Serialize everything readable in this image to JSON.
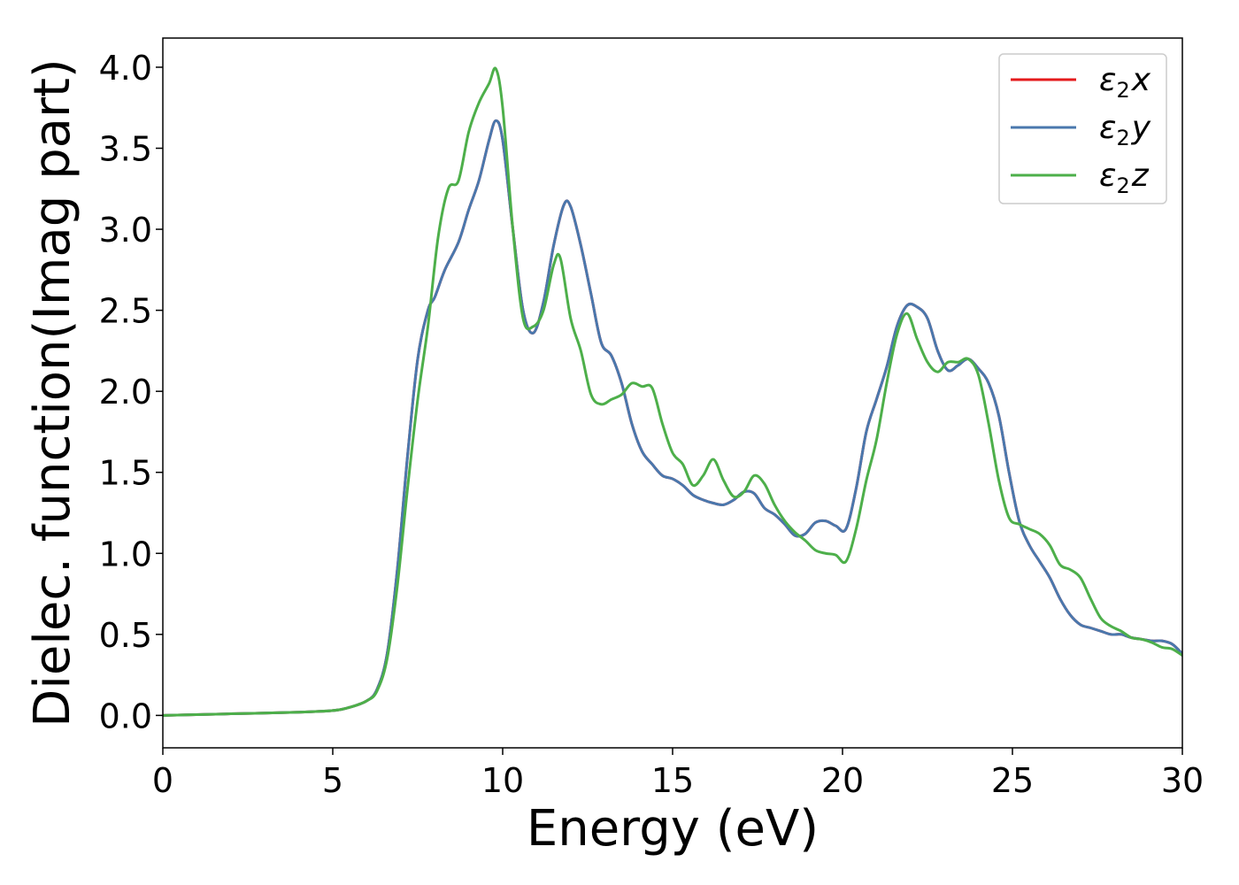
{
  "chart_data": {
    "type": "line",
    "title": "",
    "xlabel": "Energy (eV)",
    "ylabel": "Dielec. function(Imag part)",
    "xlim": [
      0,
      30
    ],
    "ylim": [
      -0.2,
      4.18
    ],
    "xticks": [
      0,
      5,
      10,
      15,
      20,
      25,
      30
    ],
    "xtick_labels": [
      "0",
      "5",
      "10",
      "15",
      "20",
      "25",
      "30"
    ],
    "yticks": [
      0.0,
      0.5,
      1.0,
      1.5,
      2.0,
      2.5,
      3.0,
      3.5,
      4.0
    ],
    "ytick_labels": [
      "0.0",
      "0.5",
      "1.0",
      "1.5",
      "2.0",
      "2.5",
      "3.0",
      "3.5",
      "4.0"
    ],
    "grid": false,
    "legend_position": "top-right",
    "series": [
      {
        "name": "ε2x",
        "legend_base": "ε",
        "legend_sub": "2",
        "legend_var": "x",
        "color": "#e41a1c",
        "x": [
          0,
          2,
          4,
          5,
          5.5,
          6,
          6.3,
          6.6,
          6.9,
          7.2,
          7.5,
          7.8,
          8.0,
          8.3,
          8.7,
          9.0,
          9.3,
          9.6,
          9.8,
          10.0,
          10.3,
          10.6,
          10.9,
          11.2,
          11.5,
          11.8,
          12.0,
          12.3,
          12.6,
          12.9,
          13.2,
          13.5,
          13.8,
          14.1,
          14.4,
          14.7,
          15.0,
          15.3,
          15.6,
          15.9,
          16.2,
          16.5,
          16.8,
          17.1,
          17.4,
          17.7,
          18.0,
          18.3,
          18.6,
          18.9,
          19.2,
          19.5,
          19.8,
          20.1,
          20.4,
          20.7,
          21.0,
          21.3,
          21.6,
          21.9,
          22.2,
          22.5,
          22.8,
          23.1,
          23.4,
          23.7,
          24.0,
          24.3,
          24.6,
          24.9,
          25.2,
          25.5,
          25.8,
          26.1,
          26.4,
          26.7,
          27.0,
          27.3,
          27.6,
          27.9,
          28.2,
          28.5,
          28.8,
          29.1,
          29.4,
          29.7,
          30.0
        ],
        "values": [
          0.0,
          0.01,
          0.02,
          0.03,
          0.05,
          0.09,
          0.16,
          0.38,
          0.9,
          1.6,
          2.2,
          2.5,
          2.58,
          2.75,
          2.92,
          3.12,
          3.3,
          3.55,
          3.67,
          3.55,
          3.0,
          2.5,
          2.36,
          2.55,
          2.9,
          3.15,
          3.14,
          2.9,
          2.6,
          2.3,
          2.22,
          2.05,
          1.8,
          1.63,
          1.55,
          1.48,
          1.46,
          1.42,
          1.36,
          1.33,
          1.31,
          1.3,
          1.33,
          1.38,
          1.37,
          1.28,
          1.24,
          1.18,
          1.11,
          1.12,
          1.19,
          1.2,
          1.17,
          1.15,
          1.4,
          1.75,
          1.95,
          2.15,
          2.4,
          2.53,
          2.52,
          2.45,
          2.25,
          2.13,
          2.16,
          2.2,
          2.14,
          2.05,
          1.85,
          1.5,
          1.2,
          1.05,
          0.95,
          0.85,
          0.72,
          0.62,
          0.56,
          0.54,
          0.52,
          0.5,
          0.5,
          0.48,
          0.47,
          0.46,
          0.46,
          0.44,
          0.38
        ]
      },
      {
        "name": "ε2y",
        "legend_base": "ε",
        "legend_sub": "2",
        "legend_var": "y",
        "color": "#4a78ad",
        "x": [
          0,
          2,
          4,
          5,
          5.5,
          6,
          6.3,
          6.6,
          6.9,
          7.2,
          7.5,
          7.8,
          8.0,
          8.3,
          8.7,
          9.0,
          9.3,
          9.6,
          9.8,
          10.0,
          10.3,
          10.6,
          10.9,
          11.2,
          11.5,
          11.8,
          12.0,
          12.3,
          12.6,
          12.9,
          13.2,
          13.5,
          13.8,
          14.1,
          14.4,
          14.7,
          15.0,
          15.3,
          15.6,
          15.9,
          16.2,
          16.5,
          16.8,
          17.1,
          17.4,
          17.7,
          18.0,
          18.3,
          18.6,
          18.9,
          19.2,
          19.5,
          19.8,
          20.1,
          20.4,
          20.7,
          21.0,
          21.3,
          21.6,
          21.9,
          22.2,
          22.5,
          22.8,
          23.1,
          23.4,
          23.7,
          24.0,
          24.3,
          24.6,
          24.9,
          25.2,
          25.5,
          25.8,
          26.1,
          26.4,
          26.7,
          27.0,
          27.3,
          27.6,
          27.9,
          28.2,
          28.5,
          28.8,
          29.1,
          29.4,
          29.7,
          30.0
        ],
        "values": [
          0.0,
          0.01,
          0.02,
          0.03,
          0.05,
          0.09,
          0.16,
          0.38,
          0.9,
          1.6,
          2.2,
          2.5,
          2.58,
          2.75,
          2.92,
          3.12,
          3.3,
          3.55,
          3.67,
          3.55,
          3.0,
          2.5,
          2.36,
          2.55,
          2.9,
          3.15,
          3.14,
          2.9,
          2.6,
          2.3,
          2.22,
          2.05,
          1.8,
          1.63,
          1.55,
          1.48,
          1.46,
          1.42,
          1.36,
          1.33,
          1.31,
          1.3,
          1.33,
          1.38,
          1.37,
          1.28,
          1.24,
          1.18,
          1.11,
          1.12,
          1.19,
          1.2,
          1.17,
          1.15,
          1.4,
          1.75,
          1.95,
          2.15,
          2.4,
          2.53,
          2.52,
          2.45,
          2.25,
          2.13,
          2.16,
          2.2,
          2.14,
          2.05,
          1.85,
          1.5,
          1.2,
          1.05,
          0.95,
          0.85,
          0.72,
          0.62,
          0.56,
          0.54,
          0.52,
          0.5,
          0.5,
          0.48,
          0.47,
          0.46,
          0.46,
          0.44,
          0.38
        ]
      },
      {
        "name": "ε2z",
        "legend_base": "ε",
        "legend_sub": "2",
        "legend_var": "z",
        "color": "#4daf4a",
        "x": [
          0,
          2,
          4,
          5,
          5.5,
          6,
          6.3,
          6.6,
          6.9,
          7.2,
          7.5,
          7.8,
          8.1,
          8.4,
          8.7,
          9.0,
          9.3,
          9.6,
          9.8,
          10.0,
          10.3,
          10.6,
          10.9,
          11.2,
          11.5,
          11.7,
          12.0,
          12.3,
          12.6,
          12.9,
          13.2,
          13.5,
          13.8,
          14.1,
          14.4,
          14.7,
          15.0,
          15.3,
          15.6,
          15.9,
          16.2,
          16.5,
          16.8,
          17.1,
          17.4,
          17.7,
          18.0,
          18.3,
          18.6,
          18.9,
          19.2,
          19.5,
          19.8,
          20.1,
          20.4,
          20.7,
          21.0,
          21.3,
          21.6,
          21.9,
          22.2,
          22.5,
          22.8,
          23.1,
          23.4,
          23.7,
          24.0,
          24.3,
          24.6,
          24.9,
          25.2,
          25.5,
          25.8,
          26.1,
          26.4,
          26.7,
          27.0,
          27.3,
          27.6,
          27.9,
          28.2,
          28.5,
          28.8,
          29.1,
          29.4,
          29.7,
          30.0
        ],
        "values": [
          0.0,
          0.01,
          0.02,
          0.03,
          0.05,
          0.09,
          0.15,
          0.35,
          0.8,
          1.4,
          1.95,
          2.4,
          2.95,
          3.25,
          3.3,
          3.6,
          3.78,
          3.9,
          3.99,
          3.75,
          3.0,
          2.45,
          2.4,
          2.5,
          2.78,
          2.82,
          2.45,
          2.25,
          1.98,
          1.92,
          1.95,
          1.98,
          2.05,
          2.03,
          2.02,
          1.8,
          1.62,
          1.55,
          1.42,
          1.48,
          1.58,
          1.45,
          1.35,
          1.38,
          1.48,
          1.43,
          1.3,
          1.2,
          1.13,
          1.08,
          1.02,
          1.0,
          0.99,
          0.95,
          1.15,
          1.45,
          1.7,
          2.05,
          2.35,
          2.48,
          2.32,
          2.18,
          2.12,
          2.18,
          2.18,
          2.2,
          2.1,
          1.8,
          1.45,
          1.22,
          1.18,
          1.15,
          1.12,
          1.05,
          0.93,
          0.9,
          0.85,
          0.72,
          0.6,
          0.55,
          0.52,
          0.48,
          0.47,
          0.45,
          0.42,
          0.41,
          0.37
        ]
      }
    ]
  }
}
